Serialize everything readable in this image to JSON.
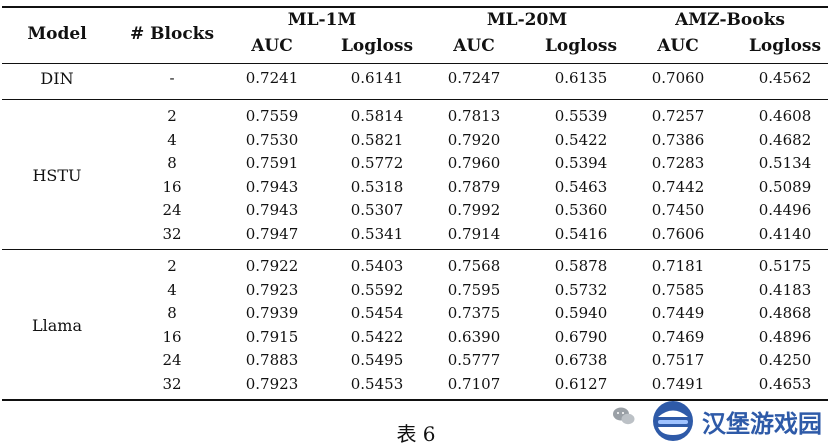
{
  "header": {
    "model": "Model",
    "blocks": "# Blocks",
    "datasets": [
      "ML-1M",
      "ML-20M",
      "AMZ-Books"
    ],
    "metrics": [
      "AUC",
      "Logloss",
      "AUC",
      "Logloss",
      "AUC",
      "Logloss"
    ]
  },
  "groups": [
    {
      "model": "DIN",
      "rows": [
        [
          "-",
          "0.7241",
          "0.6141",
          "0.7247",
          "0.6135",
          "0.7060",
          "0.4562"
        ]
      ]
    },
    {
      "model": "HSTU",
      "rows": [
        [
          "2",
          "0.7559",
          "0.5814",
          "0.7813",
          "0.5539",
          "0.7257",
          "0.4608"
        ],
        [
          "4",
          "0.7530",
          "0.5821",
          "0.7920",
          "0.5422",
          "0.7386",
          "0.4682"
        ],
        [
          "8",
          "0.7591",
          "0.5772",
          "0.7960",
          "0.5394",
          "0.7283",
          "0.5134"
        ],
        [
          "16",
          "0.7943",
          "0.5318",
          "0.7879",
          "0.5463",
          "0.7442",
          "0.5089"
        ],
        [
          "24",
          "0.7943",
          "0.5307",
          "0.7992",
          "0.5360",
          "0.7450",
          "0.4496"
        ],
        [
          "32",
          "0.7947",
          "0.5341",
          "0.7914",
          "0.5416",
          "0.7606",
          "0.4140"
        ]
      ]
    },
    {
      "model": "Llama",
      "rows": [
        [
          "2",
          "0.7922",
          "0.5403",
          "0.7568",
          "0.5878",
          "0.7181",
          "0.5175"
        ],
        [
          "4",
          "0.7923",
          "0.5592",
          "0.7595",
          "0.5732",
          "0.7585",
          "0.4183"
        ],
        [
          "8",
          "0.7939",
          "0.5454",
          "0.7375",
          "0.5940",
          "0.7449",
          "0.4868"
        ],
        [
          "16",
          "0.7915",
          "0.5422",
          "0.6390",
          "0.6790",
          "0.7469",
          "0.4896"
        ],
        [
          "24",
          "0.7883",
          "0.5495",
          "0.5777",
          "0.6738",
          "0.7517",
          "0.4250"
        ],
        [
          "32",
          "0.7923",
          "0.5453",
          "0.7107",
          "0.6127",
          "0.7491",
          "0.4653"
        ]
      ]
    }
  ],
  "caption": "表 6",
  "watermark": {
    "text": "汉堡游戏园",
    "icon": "hamburger-logo-icon",
    "chat_icon": "wechat-icon",
    "brand_color": "#2e5aa8"
  }
}
